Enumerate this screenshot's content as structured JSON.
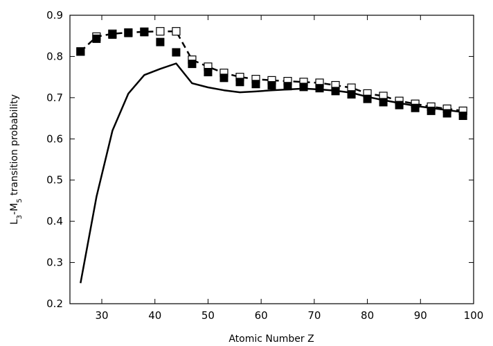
{
  "chart_data": {
    "type": "scatter",
    "xlabel": "Atomic Number Z",
    "ylabel": {
      "prefix": "L",
      "sub1": "3",
      "mid": "-M",
      "sub2": "5",
      "suffix": " transition probability"
    },
    "xlim": [
      24,
      100
    ],
    "ylim": [
      0.2,
      0.9
    ],
    "xticks": [
      30,
      40,
      50,
      60,
      70,
      80,
      90,
      100
    ],
    "yticks": [
      0.2,
      0.3,
      0.4,
      0.5,
      0.6,
      0.7,
      0.8,
      0.9
    ],
    "grid": false,
    "legend": "none",
    "series": [
      {
        "style": "solid-line",
        "color": "#000000",
        "x": [
          26,
          29,
          32,
          35,
          38,
          41,
          44,
          47,
          50,
          53,
          56,
          59,
          62,
          65,
          68,
          71,
          74,
          77,
          80,
          83,
          86,
          89,
          92,
          95,
          98
        ],
        "y": [
          0.25,
          0.46,
          0.62,
          0.71,
          0.755,
          0.77,
          0.783,
          0.735,
          0.725,
          0.718,
          0.713,
          0.715,
          0.718,
          0.72,
          0.722,
          0.72,
          0.717,
          0.712,
          0.702,
          0.694,
          0.687,
          0.68,
          0.675,
          0.67,
          0.665
        ]
      },
      {
        "style": "dashed-line-open-squares",
        "color": "#000000",
        "x": [
          26,
          29,
          32,
          35,
          38,
          41,
          44,
          47,
          50,
          53,
          56,
          59,
          62,
          65,
          68,
          71,
          74,
          77,
          80,
          83,
          86,
          89,
          92,
          95,
          98
        ],
        "y": [
          0.812,
          0.848,
          0.855,
          0.858,
          0.86,
          0.861,
          0.861,
          0.792,
          0.775,
          0.76,
          0.75,
          0.745,
          0.742,
          0.74,
          0.738,
          0.736,
          0.73,
          0.724,
          0.71,
          0.704,
          0.692,
          0.685,
          0.678,
          0.673,
          0.668
        ]
      },
      {
        "style": "filled-squares",
        "color": "#000000",
        "x": [
          26,
          29,
          32,
          35,
          38,
          41,
          44,
          47,
          50,
          53,
          56,
          59,
          62,
          65,
          68,
          71,
          74,
          77,
          80,
          83,
          86,
          89,
          92,
          95,
          98
        ],
        "y": [
          0.812,
          0.843,
          0.853,
          0.857,
          0.859,
          0.835,
          0.81,
          0.782,
          0.762,
          0.748,
          0.738,
          0.733,
          0.73,
          0.728,
          0.726,
          0.723,
          0.716,
          0.708,
          0.697,
          0.689,
          0.682,
          0.675,
          0.668,
          0.662,
          0.656
        ]
      }
    ]
  }
}
